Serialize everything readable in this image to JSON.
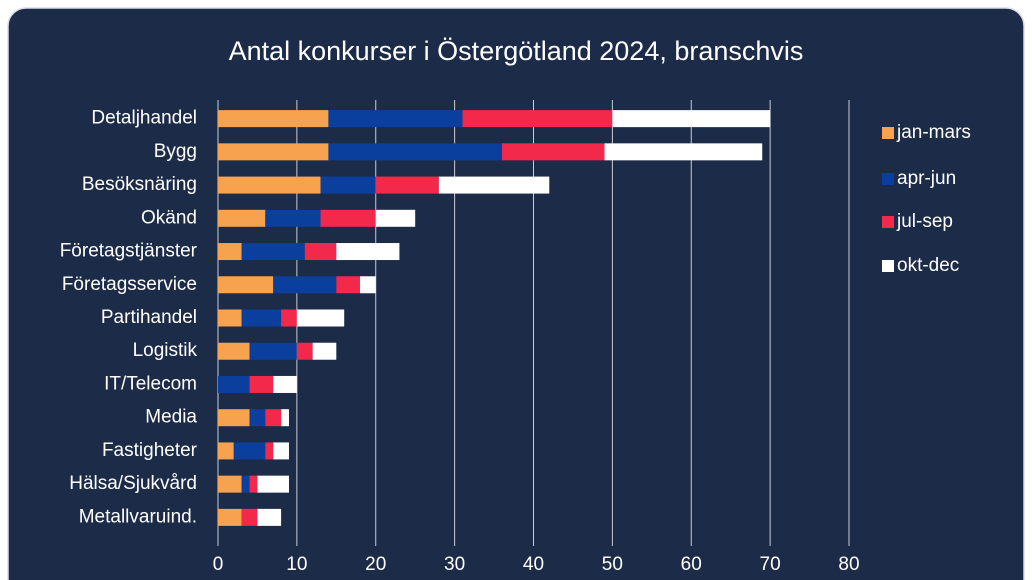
{
  "chart_data": {
    "type": "bar",
    "orientation": "horizontal",
    "stacked": true,
    "title": "Antal konkurser i Östergötland 2024, branschvis",
    "categories": [
      "Detaljhandel",
      "Bygg",
      "Besöksnäring",
      "Okänd",
      "Företagstjänster",
      "Företagsservice",
      "Partihandel",
      "Logistik",
      "IT/Telecom",
      "Media",
      "Fastigheter",
      "Hälsa/Sjukvård",
      "Metallvaruind."
    ],
    "series": [
      {
        "name": "jan-mars",
        "color": "#f7a24f",
        "values": [
          14,
          14,
          13,
          6,
          3,
          7,
          3,
          4,
          0,
          4,
          2,
          3,
          3
        ]
      },
      {
        "name": "apr-jun",
        "color": "#0b3f9e",
        "values": [
          17,
          22,
          7,
          7,
          8,
          8,
          5,
          6,
          4,
          2,
          4,
          1,
          0
        ]
      },
      {
        "name": "jul-sep",
        "color": "#f2294b",
        "values": [
          19,
          13,
          8,
          7,
          4,
          3,
          2,
          2,
          3,
          2,
          1,
          1,
          2
        ]
      },
      {
        "name": "okt-dec",
        "color": "#ffffff",
        "values": [
          20,
          20,
          14,
          5,
          8,
          2,
          6,
          3,
          3,
          1,
          2,
          4,
          3
        ]
      }
    ],
    "xlim": [
      0,
      80
    ],
    "xticks": [
      0,
      10,
      20,
      30,
      40,
      50,
      60,
      70,
      80
    ],
    "grid": true,
    "legend": "right"
  }
}
